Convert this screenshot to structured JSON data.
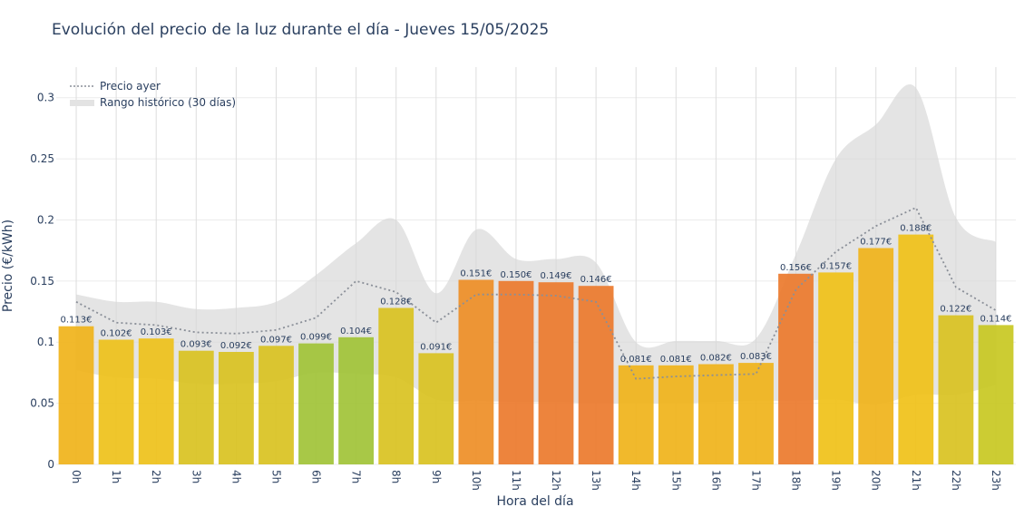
{
  "chart_data": {
    "type": "bar",
    "title": "Evolución del precio de la luz durante el día - Jueves 15/05/2025",
    "xlabel": "Hora del día",
    "ylabel": "Precio (€/kWh)",
    "ylim": [
      0,
      0.325
    ],
    "yticks": [
      {
        "value": 0,
        "label": "0"
      },
      {
        "value": 0.05,
        "label": "0.05"
      },
      {
        "value": 0.1,
        "label": "0.1"
      },
      {
        "value": 0.15,
        "label": "0.15"
      },
      {
        "value": 0.2,
        "label": "0.2"
      },
      {
        "value": 0.25,
        "label": "0.25"
      },
      {
        "value": 0.3,
        "label": "0.3"
      }
    ],
    "categories": [
      "0h",
      "1h",
      "2h",
      "3h",
      "4h",
      "5h",
      "6h",
      "7h",
      "8h",
      "9h",
      "10h",
      "11h",
      "12h",
      "13h",
      "14h",
      "15h",
      "16h",
      "17h",
      "18h",
      "19h",
      "20h",
      "21h",
      "22h",
      "23h"
    ],
    "values": [
      0.113,
      0.102,
      0.103,
      0.093,
      0.092,
      0.097,
      0.099,
      0.104,
      0.128,
      0.091,
      0.151,
      0.15,
      0.149,
      0.146,
      0.081,
      0.081,
      0.082,
      0.083,
      0.156,
      0.157,
      0.177,
      0.188,
      0.122,
      0.114
    ],
    "labels": [
      "0.113€",
      "0.102€",
      "0.103€",
      "0.093€",
      "0.092€",
      "0.097€",
      "0.099€",
      "0.104€",
      "0.128€",
      "0.091€",
      "0.151€",
      "0.150€",
      "0.149€",
      "0.146€",
      "0.081€",
      "0.081€",
      "0.082€",
      "0.083€",
      "0.156€",
      "0.157€",
      "0.177€",
      "0.188€",
      "0.122€",
      "0.114€"
    ],
    "bar_colors": [
      "#f0b41c",
      "#eec21c",
      "#eec21c",
      "#d9c322",
      "#d9c322",
      "#d9c322",
      "#a1c439",
      "#a1c439",
      "#d9c322",
      "#d9c322",
      "#ee8f28",
      "#ec7b2e",
      "#ec7b2e",
      "#ec7b2e",
      "#f0b41c",
      "#f0b41c",
      "#f0b41c",
      "#f0b41c",
      "#ec7b2e",
      "#f0c21a",
      "#f0b41c",
      "#f0c21a",
      "#d9c322",
      "#c8c824"
    ],
    "series": [
      {
        "name": "Precio ayer",
        "type": "line",
        "style": "dotted",
        "color": "#8a8f98",
        "values": [
          0.133,
          0.116,
          0.114,
          0.108,
          0.107,
          0.11,
          0.12,
          0.15,
          0.141,
          0.116,
          0.139,
          0.139,
          0.138,
          0.133,
          0.07,
          0.072,
          0.073,
          0.074,
          0.143,
          0.174,
          0.195,
          0.21,
          0.145,
          0.126
        ]
      },
      {
        "name": "Rango histórico (30 días)",
        "type": "range",
        "color": "#d9d9d9",
        "upper": [
          0.139,
          0.133,
          0.133,
          0.127,
          0.128,
          0.133,
          0.155,
          0.181,
          0.2,
          0.14,
          0.192,
          0.168,
          0.168,
          0.165,
          0.1,
          0.101,
          0.101,
          0.103,
          0.172,
          0.25,
          0.278,
          0.308,
          0.202,
          0.182
        ],
        "lower": [
          0.077,
          0.071,
          0.07,
          0.066,
          0.066,
          0.068,
          0.075,
          0.074,
          0.071,
          0.053,
          0.052,
          0.051,
          0.051,
          0.05,
          0.05,
          0.05,
          0.051,
          0.052,
          0.052,
          0.053,
          0.049,
          0.057,
          0.057,
          0.065
        ]
      }
    ],
    "grid": true,
    "legend_position": "top-left"
  }
}
